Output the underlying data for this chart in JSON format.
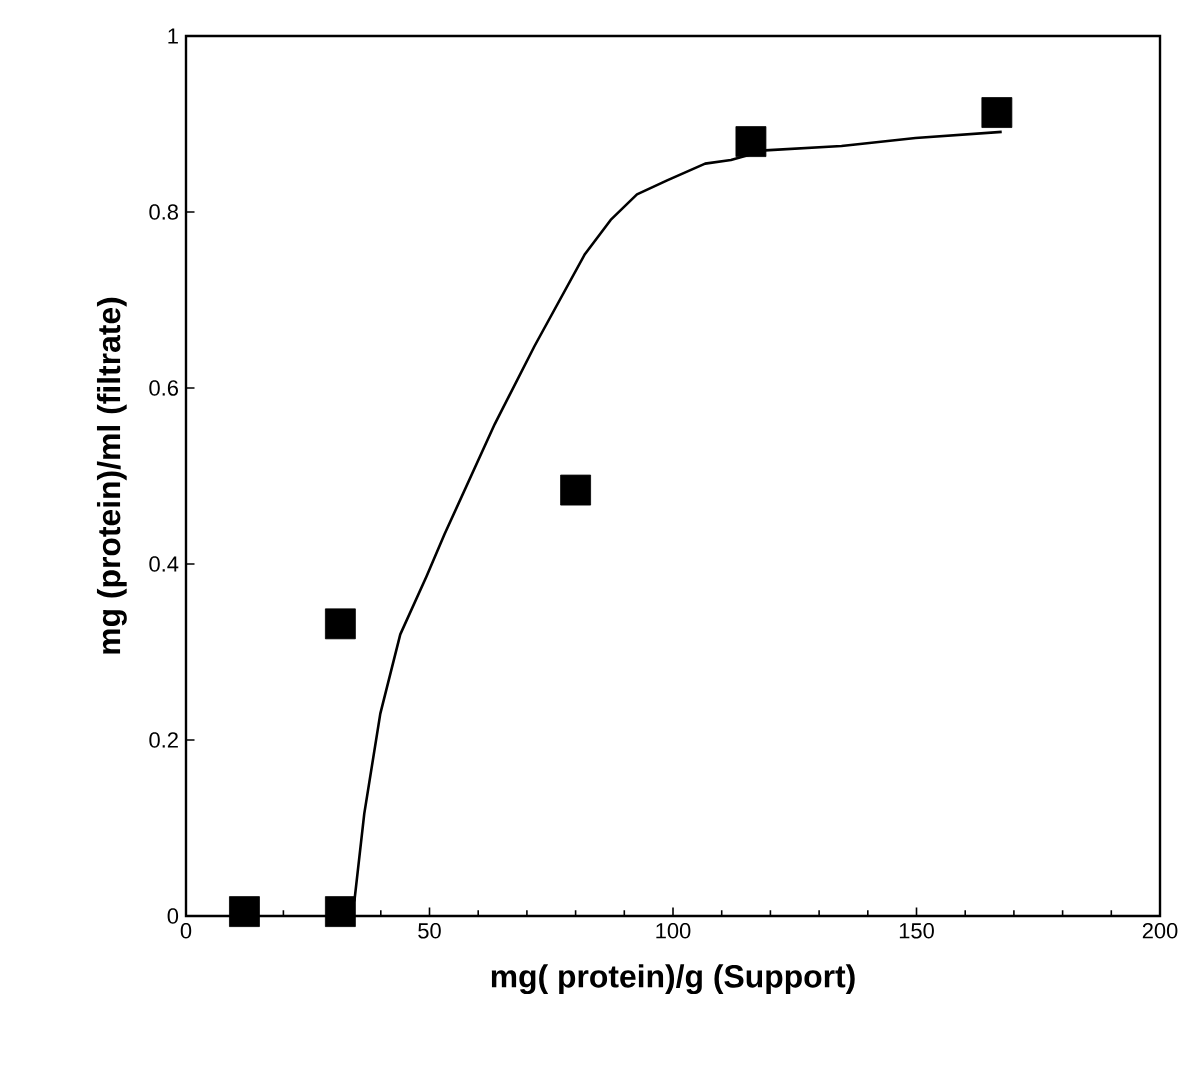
{
  "chart_data": {
    "type": "scatter",
    "xlabel": "mg( protein)/g (Support)",
    "ylabel": "mg (protein)/ml (filtrate)",
    "xlim": [
      0,
      200
    ],
    "ylim": [
      0,
      1
    ],
    "xticks": [
      0,
      50,
      100,
      150,
      200
    ],
    "yticks": [
      0,
      0.2,
      0.4,
      0.6,
      0.8,
      1
    ],
    "grid": false,
    "series": [
      {
        "marker": "square",
        "color": "#000000",
        "x": [
          12,
          31.7,
          31.7,
          80,
          116,
          166.5
        ],
        "values": [
          0.005,
          0.005,
          0.332,
          0.484,
          0.88,
          0.913
        ]
      },
      {
        "type": "line",
        "marker": "none",
        "line_style": "solid",
        "color": "#000000",
        "x": [
          33,
          34.6,
          36.6,
          39.9,
          44,
          49.4,
          53.1,
          63.4,
          71.6,
          81.9,
          87.2,
          92.6,
          98.8,
          106.6,
          111.9,
          118.9,
          134.6,
          149.8,
          167.5
        ],
        "values": [
          0,
          0.018,
          0.116,
          0.23,
          0.32,
          0.386,
          0.434,
          0.559,
          0.648,
          0.752,
          0.791,
          0.82,
          0.836,
          0.855,
          0.859,
          0.87,
          0.875,
          0.884,
          0.891
        ]
      }
    ]
  }
}
